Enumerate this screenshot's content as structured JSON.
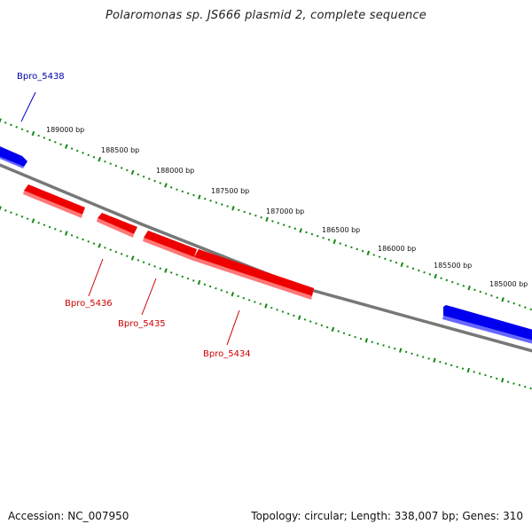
{
  "title": "Polaromonas sp. JS666 plasmid 2, complete sequence",
  "footer": {
    "accession": "Accession: NC_007950",
    "topology": "Topology: circular; Length: 338,007 bp; Genes: 310"
  },
  "colors": {
    "forward_gene": "#0000ee",
    "reverse_gene": "#ee0000",
    "backbone": "#888888",
    "tick": "#118811"
  },
  "scale": {
    "ticks": [
      {
        "bp": 189000,
        "label": "189000 bp"
      },
      {
        "bp": 188500,
        "label": "188500 bp"
      },
      {
        "bp": 188000,
        "label": "188000 bp"
      },
      {
        "bp": 187500,
        "label": "187500 bp"
      },
      {
        "bp": 187000,
        "label": "187000 bp"
      },
      {
        "bp": 186500,
        "label": "186500 bp"
      },
      {
        "bp": 186000,
        "label": "186000 bp"
      },
      {
        "bp": 185500,
        "label": "185500 bp"
      },
      {
        "bp": 185000,
        "label": "185000 bp"
      }
    ]
  },
  "genes": [
    {
      "name": "Bpro_5438",
      "strand": "forward",
      "labeled": true
    },
    {
      "name": "Bpro_5436",
      "strand": "reverse",
      "labeled": true
    },
    {
      "name": "Bpro_5435",
      "strand": "reverse",
      "labeled": true
    },
    {
      "name": "Bpro_5434",
      "strand": "reverse",
      "labeled": true
    },
    {
      "name": "",
      "strand": "forward",
      "labeled": false
    }
  ]
}
